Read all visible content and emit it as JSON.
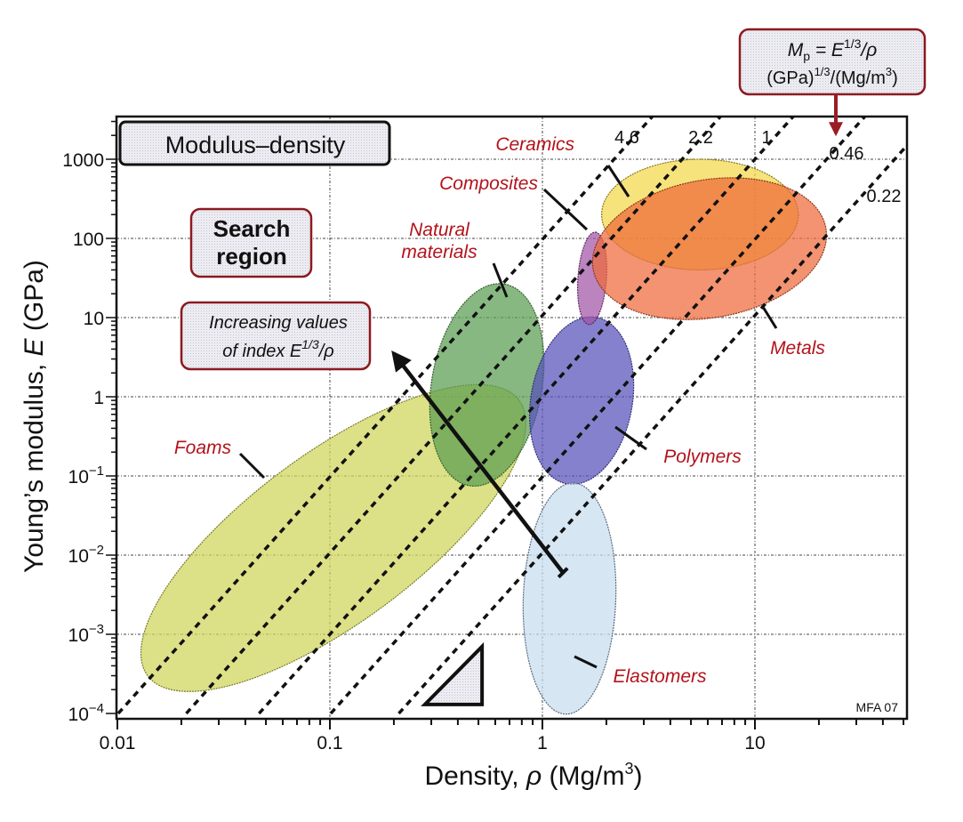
{
  "chart_data": {
    "type": "scatter",
    "subtype": "material-property-bubble-chart",
    "title": "Modulus–density",
    "xlabel": "Density, ρ  (Mg/m³)",
    "xlabel_parts": {
      "main": "Density, ",
      "symbol": "ρ",
      "unit": "  (Mg/m",
      "sup": "3",
      "close": ")"
    },
    "ylabel": "Young's modulus, E (GPa)",
    "ylabel_parts": {
      "main": "Young’s modulus, ",
      "symbol": "E",
      "unit": " (GPa)"
    },
    "x_scale": "log",
    "y_scale": "log",
    "xlim": [
      0.01,
      50
    ],
    "ylim": [
      0.0001,
      3500
    ],
    "grid": true,
    "x_ticks": [
      {
        "value": 0.01,
        "label": "0.01"
      },
      {
        "value": 0.1,
        "label": "0.1"
      },
      {
        "value": 1,
        "label": "1"
      },
      {
        "value": 10,
        "label": "10"
      }
    ],
    "y_ticks": [
      {
        "value": 1000,
        "label": "1000"
      },
      {
        "value": 100,
        "label": "100"
      },
      {
        "value": 10,
        "label": "10"
      },
      {
        "value": 1,
        "label": "1"
      },
      {
        "value": 0.1,
        "base": "10",
        "exp": "−1"
      },
      {
        "value": 0.01,
        "base": "10",
        "exp": "−2"
      },
      {
        "value": 0.001,
        "base": "10",
        "exp": "−3"
      },
      {
        "value": 0.0001,
        "base": "10",
        "exp": "−4"
      }
    ],
    "material_families": [
      {
        "name": "Foams",
        "color": "#cfd65a",
        "stroke": "#7a7d2a",
        "rho_range": [
          0.012,
          0.9
        ],
        "E_range": [
          0.0003,
          0.9
        ],
        "center": [
          0.1,
          0.012
        ],
        "label_at": [
          0.035,
          0.4
        ]
      },
      {
        "name": "Natural materials",
        "color": "#5a9c50",
        "stroke": "#35602e",
        "rho_range": [
          0.2,
          1.5
        ],
        "E_range": [
          0.08,
          25
        ],
        "center": [
          0.6,
          2
        ],
        "label_at": [
          0.3,
          40
        ]
      },
      {
        "name": "Polymers",
        "color": "#5651b8",
        "stroke": "#312d7a",
        "rho_range": [
          0.9,
          2.6
        ],
        "E_range": [
          0.08,
          10
        ],
        "center": [
          1.6,
          1
        ],
        "label_at": [
          3.5,
          0.2
        ]
      },
      {
        "name": "Elastomers",
        "color": "#c7dcef",
        "stroke": "#5a6b80",
        "rho_range": [
          0.9,
          2.0
        ],
        "E_range": [
          0.0001,
          0.08
        ],
        "center": [
          1.3,
          0.003
        ],
        "label_at": [
          2,
          0.0003
        ]
      },
      {
        "name": "Composites",
        "color": "#a254a6",
        "stroke": "#5c2a60",
        "rho_range": [
          1.4,
          2.1
        ],
        "E_range": [
          7,
          140
        ],
        "center": [
          1.7,
          35
        ],
        "label_at": [
          0.55,
          700
        ]
      },
      {
        "name": "Ceramics",
        "color": "#f3d84a",
        "stroke": "#8a7a20",
        "rho_range": [
          1.9,
          16
        ],
        "E_range": [
          40,
          1000
        ],
        "center": [
          5,
          350
        ],
        "label_at": [
          1.2,
          1300
        ]
      },
      {
        "name": "Metals",
        "color": "#ee6a3a",
        "stroke": "#8a3518",
        "rho_range": [
          1.7,
          22
        ],
        "E_range": [
          10,
          550
        ],
        "center": [
          8,
          90
        ],
        "label_at": [
          12,
          5
        ]
      }
    ],
    "guide_lines": {
      "index": "M_p = E^(1/3)/ρ",
      "slope_loglog": 3,
      "values": [
        {
          "value": 4.6,
          "label": "4.6"
        },
        {
          "value": 2.2,
          "label": "2.2"
        },
        {
          "value": 1,
          "label": "1"
        },
        {
          "value": 0.46,
          "label": "0.46"
        },
        {
          "value": 0.22,
          "label": "0.22"
        }
      ]
    },
    "annotations": {
      "title_box": "Modulus–density",
      "search_region": [
        "Search",
        "region"
      ],
      "increasing": {
        "line1": "Increasing values",
        "line2_prefix": "of index E",
        "line2_sup": "1/3",
        "line2_suffix": "/ρ"
      },
      "index_box": {
        "line1_M": "M",
        "line1_sub": "p",
        "line1_eq": " = E",
        "line1_sup": "1/3",
        "line1_tail": "/ρ",
        "line2_a": "(GPa)",
        "line2_sup1": "1/3",
        "line2_b": "/(Mg/m",
        "line2_sup2": "3",
        "line2_c": ")"
      },
      "arrow": {
        "from": [
          1.25,
          0.006
        ],
        "to": [
          0.2,
          3.5
        ]
      },
      "slope_triangle": {
        "x": [
          0.28,
          0.52
        ],
        "y": [
          0.00013,
          0.0007
        ]
      },
      "credit": "MFA 07"
    },
    "colors": {
      "label_red": "#b3121b",
      "box_border": "#8b1a1f",
      "box_fill": "#ececf2"
    }
  }
}
